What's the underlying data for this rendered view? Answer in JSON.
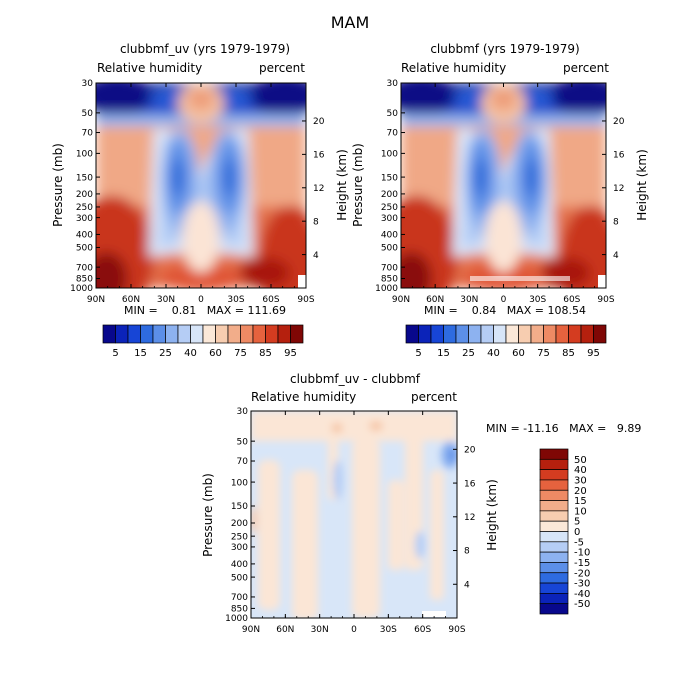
{
  "chart_data": {
    "title": "MAM",
    "panels": [
      {
        "type": "heatmap",
        "title": "clubbmf_uv (yrs 1979-1979)",
        "left_label": "Relative humidity",
        "right_label": "percent",
        "xlabel": "",
        "ylabel": "Pressure (mb)",
        "y2label": "Height (km)",
        "x_ticks": [
          "90N",
          "60N",
          "30N",
          "0",
          "30S",
          "60S",
          "90S"
        ],
        "y_ticks": [
          "30",
          "50",
          "70",
          "100",
          "150",
          "200",
          "250",
          "300",
          "400",
          "500",
          "700",
          "850",
          "1000"
        ],
        "y2_ticks": [
          "20",
          "16",
          "12",
          "8",
          "4"
        ],
        "min": "0.81",
        "max": "111.69",
        "stats_text": "MIN =    0.81   MAX = 111.69"
      },
      {
        "type": "heatmap",
        "title": "clubbmf (yrs 1979-1979)",
        "left_label": "Relative humidity",
        "right_label": "percent",
        "xlabel": "",
        "ylabel": "Pressure (mb)",
        "y2label": "Height (km)",
        "x_ticks": [
          "90N",
          "60N",
          "30N",
          "0",
          "30S",
          "60S",
          "90S"
        ],
        "y_ticks": [
          "30",
          "50",
          "70",
          "100",
          "150",
          "200",
          "250",
          "300",
          "400",
          "500",
          "700",
          "850",
          "1000"
        ],
        "y2_ticks": [
          "20",
          "16",
          "12",
          "8",
          "4"
        ],
        "min": "0.84",
        "max": "108.54",
        "stats_text": "MIN =    0.84   MAX = 108.54"
      },
      {
        "type": "heatmap",
        "title": "clubbmf_uv - clubbmf",
        "left_label": "Relative humidity",
        "right_label": "percent",
        "xlabel": "",
        "ylabel": "Pressure (mb)",
        "y2label": "Height (km)",
        "x_ticks": [
          "90N",
          "60N",
          "30N",
          "0",
          "30S",
          "60S",
          "90S"
        ],
        "y_ticks": [
          "30",
          "50",
          "70",
          "100",
          "150",
          "200",
          "250",
          "300",
          "400",
          "500",
          "700",
          "850",
          "1000"
        ],
        "y2_ticks": [
          "20",
          "16",
          "12",
          "8",
          "4"
        ],
        "min": "-11.16",
        "max": "9.89",
        "stats_text": "MIN = -11.16   MAX =   9.89"
      }
    ],
    "colorbar_main": {
      "labels": [
        "5",
        "15",
        "25",
        "40",
        "60",
        "75",
        "85",
        "95"
      ],
      "colors": [
        "#08088c",
        "#0b23b9",
        "#1745d6",
        "#2e6be0",
        "#5c8fe8",
        "#8db2f0",
        "#b5cdf5",
        "#d7e5f8",
        "#fbe8d8",
        "#f7cdb0",
        "#f2ad8a",
        "#ee8a64",
        "#e6623e",
        "#d43c20",
        "#b5200e",
        "#7f0705"
      ]
    },
    "colorbar_diff": {
      "labels": [
        "50",
        "40",
        "30",
        "20",
        "15",
        "10",
        "5",
        "0",
        "-5",
        "-10",
        "-15",
        "-20",
        "-30",
        "-40",
        "-50"
      ],
      "colors": [
        "#7f0705",
        "#b5200e",
        "#d43c20",
        "#e6623e",
        "#ee8a64",
        "#f2ad8a",
        "#f7cdb0",
        "#fbe8d8",
        "#d7e5f8",
        "#b5cdf5",
        "#8db2f0",
        "#5c8fe8",
        "#2e6be0",
        "#1745d6",
        "#0b23b9",
        "#08088c"
      ]
    }
  }
}
